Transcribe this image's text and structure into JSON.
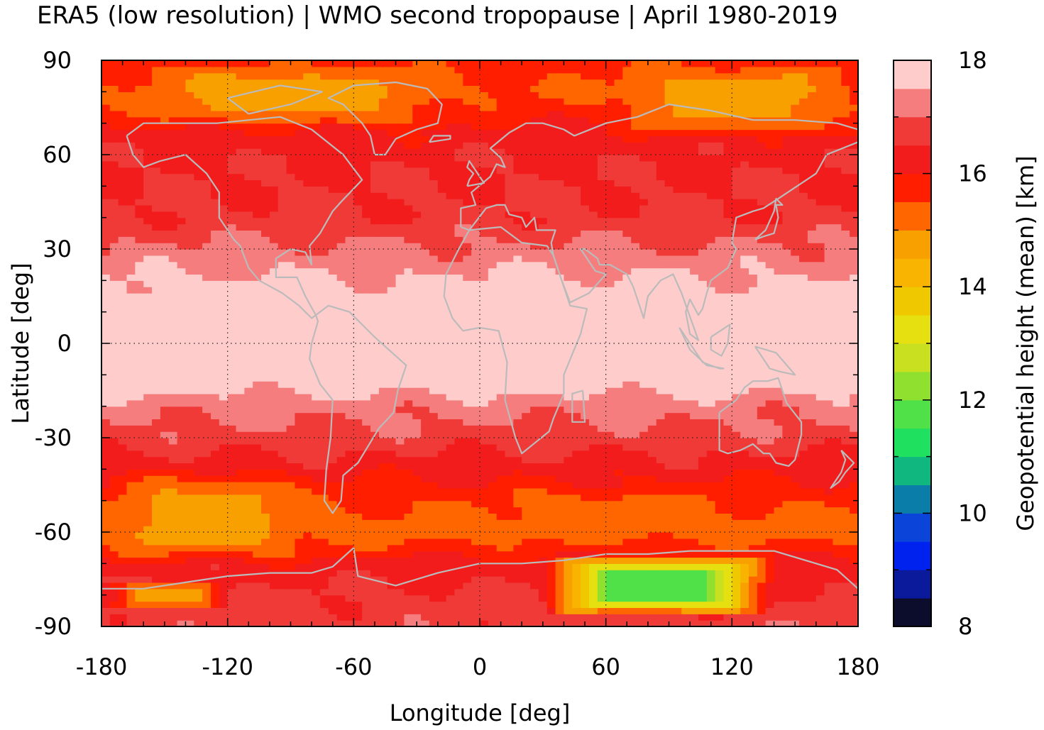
{
  "chart_data": {
    "type": "heatmap",
    "title": "ERA5 (low resolution) | WMO second tropopause | April 1980-2019",
    "xlabel": "Longitude [deg]",
    "ylabel": "Latitude [deg]",
    "colorbar_label": "Geopotential height (mean) [km]",
    "xlim": [
      -180,
      180
    ],
    "ylim": [
      -90,
      90
    ],
    "zlim": [
      8,
      18
    ],
    "grid": true,
    "x_ticks": [
      -180,
      -120,
      -60,
      0,
      60,
      120,
      180
    ],
    "x_tick_labels": [
      "-180",
      "-120",
      "-60",
      "0",
      "60",
      "120",
      "180"
    ],
    "y_ticks": [
      -90,
      -60,
      -30,
      0,
      30,
      60,
      90
    ],
    "y_tick_labels": [
      "-90",
      "-60",
      "-30",
      "0",
      "30",
      "60",
      "90"
    ],
    "colorbar_ticks": [
      8,
      10,
      12,
      14,
      16,
      18
    ],
    "colorbar_tick_labels": [
      "8",
      "10",
      "12",
      "14",
      "16",
      "18"
    ],
    "colorbar_colors": [
      "#0c0c2c",
      "#0a1a9a",
      "#0022ee",
      "#0a44d8",
      "#0a7ea8",
      "#10b880",
      "#20e060",
      "#50e048",
      "#90e030",
      "#c8e020",
      "#e6e010",
      "#f0c800",
      "#f8b400",
      "#f8a000",
      "#ff6600",
      "#ff1e00",
      "#f21c1c",
      "#ef3a38",
      "#f57d7d",
      "#ffcccc"
    ],
    "zonal_mean_height_km": {
      "lat": [
        -90,
        -80,
        -70,
        -60,
        -50,
        -40,
        -30,
        -20,
        -10,
        0,
        10,
        20,
        30,
        40,
        50,
        60,
        70,
        80,
        90
      ],
      "z": [
        16.8,
        16.6,
        16.2,
        15.2,
        15.6,
        16.2,
        16.8,
        17.2,
        18.0,
        18.0,
        18.0,
        17.6,
        17.1,
        16.6,
        16.5,
        16.4,
        16.0,
        15.4,
        15.8
      ]
    },
    "regions": [
      {
        "lon": [
          30,
          140
        ],
        "lat": [
          -87,
          -67
        ],
        "z": 11.5
      },
      {
        "lon": [
          -180,
          -80
        ],
        "lat": [
          -70,
          -40
        ],
        "z": 14.8
      },
      {
        "lon": [
          -10,
          140
        ],
        "lat": [
          -62,
          -45
        ],
        "z": 15.4
      },
      {
        "lon": [
          -180,
          -120
        ],
        "lat": [
          -85,
          -75
        ],
        "z": 14.5
      },
      {
        "lon": [
          -170,
          -10
        ],
        "lat": [
          68,
          90
        ],
        "z": 14.8
      },
      {
        "lon": [
          60,
          180
        ],
        "lat": [
          65,
          90
        ],
        "z": 14.8
      }
    ],
    "coastline_color": "#bbbbbb"
  }
}
